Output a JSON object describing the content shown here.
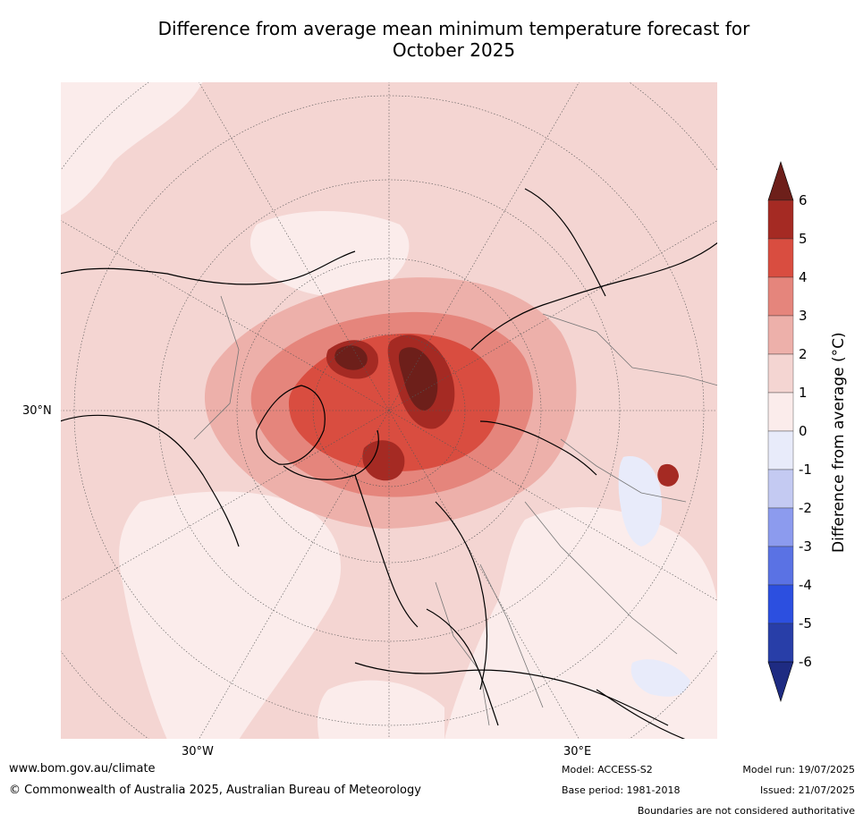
{
  "title_line1": "Difference from average mean minimum temperature forecast for",
  "title_line2": "October 2025",
  "lat_labels": [
    "30°N"
  ],
  "lon_labels": [
    "30°W",
    "30°E"
  ],
  "colorbar": {
    "title": "Difference from average (°C)",
    "ticks": [
      "6",
      "5",
      "4",
      "3",
      "2",
      "1",
      "0",
      "-1",
      "-2",
      "-3",
      "-4",
      "-5",
      "-6"
    ],
    "colors": [
      "#6d1f1a",
      "#a52a23",
      "#d94d40",
      "#e5857c",
      "#edb0aa",
      "#f4d5d2",
      "#fbeceb",
      "#e8ebfa",
      "#c4caf2",
      "#8c9bee",
      "#5a72e4",
      "#2c4fe0",
      "#283ea8",
      "#1e2b82"
    ]
  },
  "footer": {
    "website": "www.bom.gov.au/climate",
    "copyright": "© Commonwealth of Australia 2025, Australian Bureau of Meteorology",
    "model": "Model: ACCESS-S2",
    "base_period": "Base period: 1981-2018",
    "model_run": "Model run: 19/07/2025",
    "issued": "Issued: 21/07/2025",
    "disclaimer": "Boundaries are not considered authoritative"
  }
}
